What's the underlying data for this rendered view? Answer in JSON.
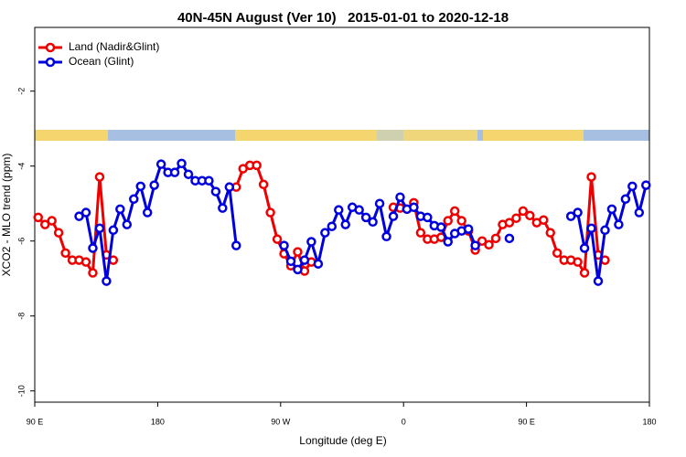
{
  "chart_data": {
    "type": "line",
    "title": "40N-45N August (Ver 10)   2015-01-01 to 2020-12-18",
    "xlabel": "Longitude (deg E)",
    "ylabel": "XCO2 - MLO trend (ppm)",
    "xlim": [
      90,
      540
    ],
    "xticks": [
      {
        "value": 90,
        "label": "90 E"
      },
      180,
      {
        "value": 270,
        "label": "90 W"
      },
      {
        "value": 360,
        "label": "0"
      },
      {
        "value": 450,
        "label": "90 E"
      },
      {
        "value": 540,
        "label": "180"
      }
    ],
    "ylim": [
      -10.3,
      -0.3
    ],
    "yticks": [
      -10,
      -8,
      -6,
      -4,
      -2
    ],
    "legend": "top-left",
    "x": [
      92.5,
      97.5,
      102.5,
      107.5,
      112.5,
      117.5,
      122.5,
      127.5,
      132.5,
      137.5,
      142.5,
      147.5,
      152.5,
      157.5,
      162.5,
      167.5,
      172.5,
      177.5,
      182.5,
      187.5,
      192.5,
      197.5,
      202.5,
      207.5,
      212.5,
      217.5,
      222.5,
      227.5,
      232.5,
      237.5,
      242.5,
      247.5,
      252.5,
      257.5,
      262.5,
      267.5,
      272.5,
      277.5,
      282.5,
      287.5,
      292.5,
      297.5,
      302.5,
      307.5,
      312.5,
      317.5,
      322.5,
      327.5,
      332.5,
      337.5,
      342.5,
      347.5,
      352.5,
      357.5,
      362.5,
      367.5,
      372.5,
      377.5,
      382.5,
      387.5,
      392.5,
      397.5,
      402.5,
      407.5,
      412.5,
      417.5,
      422.5,
      427.5,
      432.5,
      437.5,
      442.5,
      447.5,
      452.5,
      457.5,
      462.5,
      467.5,
      472.5,
      477.5,
      482.5,
      487.5,
      492.5,
      497.5,
      502.5,
      507.5,
      512.5,
      517.5,
      522.5,
      527.5,
      532.5,
      537.5
    ],
    "series": [
      {
        "name": "Land (Nadir&Glint)",
        "color": "#ee0000",
        "values": [
          -5.37,
          -5.56,
          -5.46,
          -5.78,
          -6.32,
          -6.51,
          -6.51,
          -6.56,
          -6.85,
          -4.29,
          -6.37,
          -6.51,
          null,
          null,
          null,
          null,
          null,
          null,
          null,
          null,
          null,
          null,
          null,
          null,
          null,
          null,
          null,
          null,
          null,
          -4.56,
          -4.07,
          -3.98,
          -3.98,
          -4.49,
          -5.24,
          -5.95,
          -6.34,
          -6.66,
          -6.29,
          -6.8,
          -6.56,
          null,
          null,
          null,
          null,
          null,
          null,
          null,
          null,
          null,
          null,
          null,
          -5.1,
          -5.12,
          -5.15,
          -4.98,
          -5.78,
          -5.95,
          -5.95,
          -5.9,
          -5.46,
          -5.2,
          -5.46,
          -5.73,
          -6.24,
          -6.0,
          -6.1,
          -5.93,
          -5.56,
          -5.51,
          -5.39,
          -5.2,
          -5.32,
          -5.51,
          -5.44,
          -5.78,
          -6.32,
          -6.51,
          -6.51,
          -6.56,
          -6.85,
          -4.29,
          -6.37,
          -6.51,
          null,
          null,
          null,
          null,
          null,
          null
        ]
      },
      {
        "name": "Ocean (Glint)",
        "color": "#0000dd",
        "values": [
          null,
          null,
          null,
          null,
          null,
          null,
          -5.34,
          -5.24,
          -6.19,
          -5.66,
          -7.07,
          -5.71,
          -5.15,
          -5.56,
          -4.88,
          -4.54,
          -5.24,
          -4.51,
          -3.95,
          -4.17,
          -4.17,
          -3.93,
          -4.22,
          -4.39,
          -4.39,
          -4.39,
          -4.68,
          -5.12,
          -4.56,
          -6.12,
          null,
          null,
          null,
          null,
          null,
          null,
          -6.12,
          -6.54,
          -6.76,
          -6.51,
          -6.02,
          -6.61,
          -5.78,
          -5.61,
          -5.17,
          -5.56,
          -5.1,
          -5.17,
          -5.37,
          -5.49,
          -5.0,
          -5.88,
          -5.34,
          -4.83,
          -5.15,
          -5.1,
          -5.34,
          -5.37,
          -5.59,
          -5.63,
          -6.02,
          -5.8,
          -5.73,
          -5.68,
          -6.12,
          null,
          null,
          null,
          null,
          -5.93,
          null,
          null,
          null,
          null,
          null,
          null,
          null,
          null,
          -5.34,
          -5.24,
          -6.19,
          -5.66,
          -7.07,
          -5.71,
          -5.15,
          -5.56,
          -4.88,
          -4.54,
          -5.24,
          -4.51
        ]
      }
    ]
  }
}
